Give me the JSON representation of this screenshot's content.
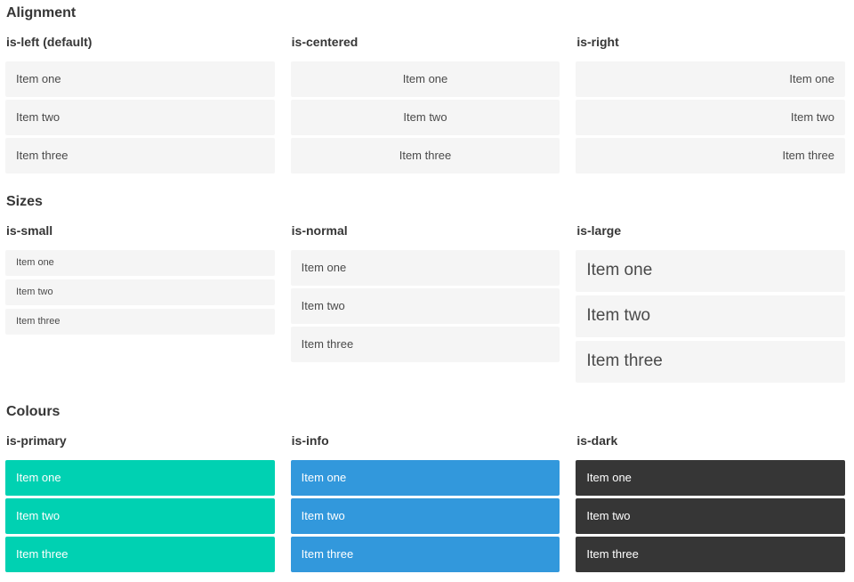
{
  "theme": {
    "primary": "#00d1b2",
    "info": "#3298dc",
    "dark": "#363636",
    "item-bg": "#f5f5f5",
    "item-text": "#4a4a4a",
    "heading": "#363636"
  },
  "sections": [
    {
      "title": "Alignment",
      "groups": [
        {
          "label": "is-left (default)",
          "items": [
            "Item one",
            "Item two",
            "Item three"
          ]
        },
        {
          "label": "is-centered",
          "items": [
            "Item one",
            "Item two",
            "Item three"
          ]
        },
        {
          "label": "is-right",
          "items": [
            "Item one",
            "Item two",
            "Item three"
          ]
        }
      ]
    },
    {
      "title": "Sizes",
      "groups": [
        {
          "label": "is-small",
          "items": [
            "Item one",
            "Item two",
            "Item three"
          ]
        },
        {
          "label": "is-normal",
          "items": [
            "Item one",
            "Item two",
            "Item three"
          ]
        },
        {
          "label": "is-large",
          "items": [
            "Item one",
            "Item two",
            "Item three"
          ]
        }
      ]
    },
    {
      "title": "Colours",
      "groups": [
        {
          "label": "is-primary",
          "items": [
            "Item one",
            "Item two",
            "Item three"
          ]
        },
        {
          "label": "is-info",
          "items": [
            "Item one",
            "Item two",
            "Item three"
          ]
        },
        {
          "label": "is-dark",
          "items": [
            "Item one",
            "Item two",
            "Item three"
          ]
        }
      ]
    }
  ]
}
